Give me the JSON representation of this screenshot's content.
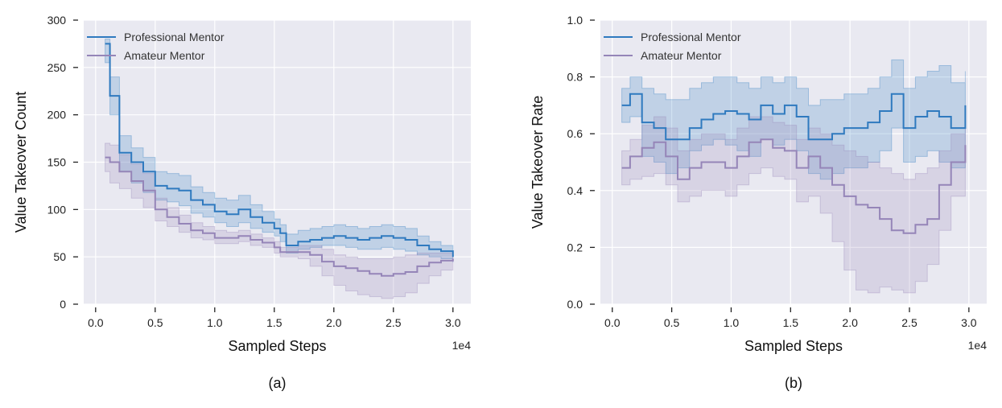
{
  "colors": {
    "professional": "#2f7abf",
    "amateur": "#9585b8",
    "panel_bg": "#e9e9f1",
    "grid": "#ffffff"
  },
  "chart_data": [
    {
      "type": "line",
      "caption": "(a)",
      "xlabel": "Sampled Steps",
      "ylabel": "Value Takeover Count",
      "x_multiplier": "1e4",
      "xlim": [
        -0.1,
        3.15
      ],
      "ylim": [
        0,
        300
      ],
      "xticks": [
        0.0,
        0.5,
        1.0,
        1.5,
        2.0,
        2.5,
        3.0
      ],
      "xtick_labels": [
        "0.0",
        "0.5",
        "1.0",
        "1.5",
        "2.0",
        "2.5",
        "3.0"
      ],
      "yticks": [
        0,
        50,
        100,
        150,
        200,
        250,
        300
      ],
      "ytick_labels": [
        "0",
        "50",
        "100",
        "150",
        "200",
        "250",
        "300"
      ],
      "grid": true,
      "legend": "top-left",
      "series": [
        {
          "name": "Professional Mentor",
          "color": "#2f7abf",
          "x": [
            0.08,
            0.12,
            0.2,
            0.3,
            0.4,
            0.5,
            0.6,
            0.7,
            0.8,
            0.9,
            1.0,
            1.1,
            1.2,
            1.3,
            1.4,
            1.5,
            1.55,
            1.6,
            1.7,
            1.8,
            1.9,
            2.0,
            2.1,
            2.2,
            2.3,
            2.4,
            2.5,
            2.6,
            2.7,
            2.8,
            2.9,
            3.0
          ],
          "y": [
            275,
            220,
            160,
            150,
            140,
            125,
            122,
            120,
            110,
            105,
            98,
            95,
            100,
            92,
            86,
            80,
            75,
            62,
            66,
            68,
            70,
            72,
            70,
            68,
            70,
            72,
            70,
            68,
            62,
            58,
            56,
            50
          ],
          "lower": [
            255,
            200,
            140,
            128,
            118,
            110,
            108,
            104,
            96,
            92,
            86,
            82,
            86,
            80,
            76,
            72,
            66,
            54,
            58,
            60,
            62,
            62,
            60,
            58,
            58,
            60,
            58,
            56,
            52,
            50,
            48,
            44
          ],
          "upper": [
            280,
            240,
            178,
            165,
            155,
            140,
            138,
            136,
            124,
            118,
            112,
            110,
            115,
            105,
            98,
            90,
            84,
            74,
            78,
            80,
            82,
            84,
            82,
            80,
            82,
            84,
            82,
            80,
            72,
            66,
            62,
            56
          ]
        },
        {
          "name": "Amateur Mentor",
          "color": "#9585b8",
          "x": [
            0.08,
            0.12,
            0.2,
            0.3,
            0.4,
            0.5,
            0.6,
            0.7,
            0.8,
            0.9,
            1.0,
            1.1,
            1.2,
            1.3,
            1.4,
            1.5,
            1.55,
            1.6,
            1.7,
            1.8,
            1.9,
            2.0,
            2.1,
            2.2,
            2.3,
            2.4,
            2.5,
            2.6,
            2.7,
            2.8,
            2.9,
            3.0
          ],
          "y": [
            155,
            150,
            140,
            130,
            120,
            100,
            92,
            85,
            78,
            75,
            70,
            70,
            72,
            68,
            65,
            60,
            55,
            55,
            55,
            52,
            45,
            40,
            38,
            35,
            32,
            30,
            32,
            34,
            40,
            44,
            46,
            48
          ],
          "lower": [
            140,
            128,
            122,
            112,
            102,
            88,
            82,
            76,
            70,
            68,
            64,
            64,
            66,
            62,
            60,
            54,
            50,
            50,
            48,
            40,
            30,
            20,
            14,
            10,
            8,
            6,
            8,
            12,
            22,
            30,
            36,
            40
          ],
          "upper": [
            170,
            168,
            158,
            148,
            138,
            112,
            102,
            94,
            86,
            82,
            78,
            76,
            78,
            74,
            70,
            66,
            60,
            60,
            62,
            62,
            58,
            52,
            50,
            48,
            48,
            48,
            50,
            52,
            54,
            54,
            54,
            52
          ]
        }
      ]
    },
    {
      "type": "line",
      "caption": "(b)",
      "xlabel": "Sampled Steps",
      "ylabel": "Value Takeover Rate",
      "x_multiplier": "1e4",
      "xlim": [
        -0.1,
        3.15
      ],
      "ylim": [
        0,
        1.0
      ],
      "xticks": [
        0.0,
        0.5,
        1.0,
        1.5,
        2.0,
        2.5,
        3.0
      ],
      "xtick_labels": [
        "0.0",
        "0.5",
        "1.0",
        "1.5",
        "2.0",
        "2.5",
        "3.0"
      ],
      "yticks": [
        0.0,
        0.2,
        0.4,
        0.6,
        0.8,
        1.0
      ],
      "ytick_labels": [
        "0.0",
        "0.2",
        "0.4",
        "0.6",
        "0.8",
        "1.0"
      ],
      "grid": true,
      "legend": "top-left",
      "series": [
        {
          "name": "Professional Mentor",
          "color": "#2f7abf",
          "x": [
            0.08,
            0.15,
            0.25,
            0.35,
            0.45,
            0.55,
            0.65,
            0.75,
            0.85,
            0.95,
            1.05,
            1.15,
            1.25,
            1.35,
            1.45,
            1.55,
            1.65,
            1.75,
            1.85,
            1.95,
            2.05,
            2.15,
            2.25,
            2.35,
            2.45,
            2.55,
            2.65,
            2.75,
            2.85,
            2.97
          ],
          "y": [
            0.7,
            0.74,
            0.64,
            0.62,
            0.58,
            0.58,
            0.62,
            0.65,
            0.67,
            0.68,
            0.67,
            0.65,
            0.7,
            0.67,
            0.7,
            0.66,
            0.58,
            0.58,
            0.6,
            0.62,
            0.62,
            0.64,
            0.68,
            0.74,
            0.62,
            0.66,
            0.68,
            0.66,
            0.62,
            0.7
          ],
          "lower": [
            0.64,
            0.66,
            0.52,
            0.5,
            0.46,
            0.48,
            0.54,
            0.56,
            0.58,
            0.56,
            0.54,
            0.52,
            0.58,
            0.56,
            0.58,
            0.54,
            0.46,
            0.44,
            0.46,
            0.48,
            0.48,
            0.5,
            0.54,
            0.62,
            0.5,
            0.52,
            0.54,
            0.5,
            0.48,
            0.56
          ],
          "upper": [
            0.76,
            0.8,
            0.76,
            0.74,
            0.72,
            0.72,
            0.76,
            0.78,
            0.8,
            0.8,
            0.78,
            0.76,
            0.8,
            0.78,
            0.8,
            0.76,
            0.7,
            0.72,
            0.72,
            0.74,
            0.74,
            0.76,
            0.8,
            0.86,
            0.76,
            0.8,
            0.82,
            0.84,
            0.78,
            0.82
          ]
        },
        {
          "name": "Amateur Mentor",
          "color": "#9585b8",
          "x": [
            0.08,
            0.15,
            0.25,
            0.35,
            0.45,
            0.55,
            0.65,
            0.75,
            0.85,
            0.95,
            1.05,
            1.15,
            1.25,
            1.35,
            1.45,
            1.55,
            1.65,
            1.75,
            1.85,
            1.95,
            2.05,
            2.15,
            2.25,
            2.35,
            2.45,
            2.55,
            2.65,
            2.75,
            2.85,
            2.97
          ],
          "y": [
            0.48,
            0.52,
            0.55,
            0.57,
            0.52,
            0.44,
            0.48,
            0.5,
            0.5,
            0.48,
            0.52,
            0.57,
            0.58,
            0.55,
            0.54,
            0.48,
            0.52,
            0.48,
            0.42,
            0.38,
            0.35,
            0.34,
            0.3,
            0.26,
            0.25,
            0.28,
            0.3,
            0.42,
            0.5,
            0.56
          ],
          "lower": [
            0.42,
            0.44,
            0.45,
            0.46,
            0.42,
            0.36,
            0.38,
            0.4,
            0.4,
            0.38,
            0.42,
            0.46,
            0.48,
            0.45,
            0.44,
            0.36,
            0.38,
            0.32,
            0.22,
            0.12,
            0.05,
            0.04,
            0.06,
            0.05,
            0.04,
            0.08,
            0.14,
            0.26,
            0.38,
            0.46
          ],
          "upper": [
            0.54,
            0.58,
            0.63,
            0.66,
            0.62,
            0.54,
            0.58,
            0.6,
            0.6,
            0.58,
            0.62,
            0.66,
            0.66,
            0.64,
            0.63,
            0.58,
            0.62,
            0.6,
            0.56,
            0.54,
            0.52,
            0.5,
            0.48,
            0.46,
            0.44,
            0.46,
            0.48,
            0.54,
            0.6,
            0.62
          ]
        }
      ]
    }
  ]
}
